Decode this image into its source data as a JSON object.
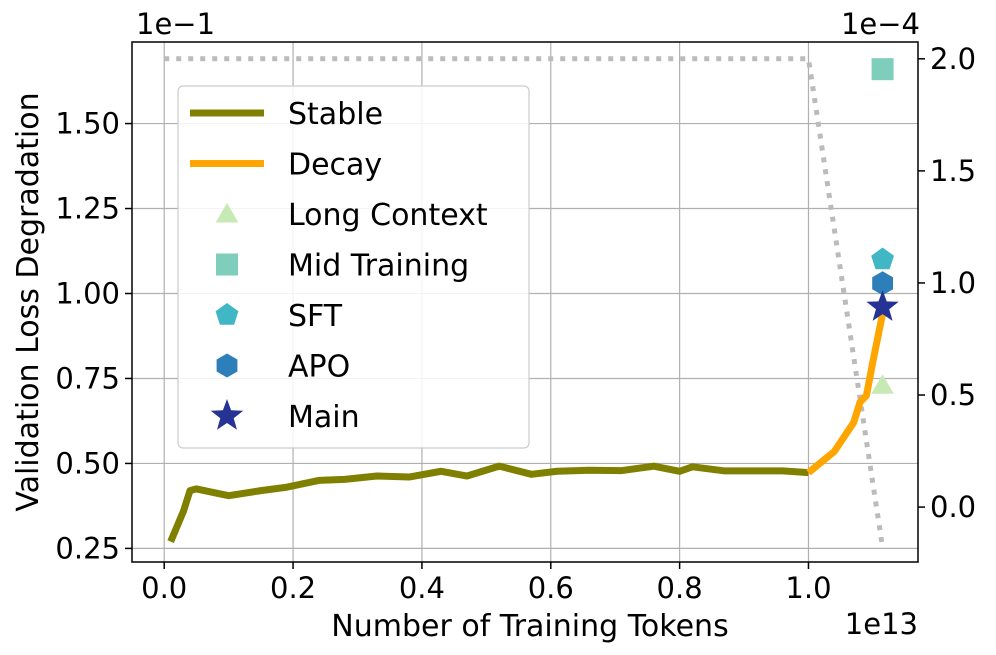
{
  "chart_data": {
    "type": "line",
    "title": "",
    "xlabel": "Number of Training Tokens",
    "ylabel": "Validation Loss Degradation",
    "x_exponent_label": "1e13",
    "y_exponent_label": "1e−1",
    "y2_exponent_label": "1e−4",
    "xlim": [
      -0.05,
      1.17
    ],
    "ylim": [
      0.21,
      1.74
    ],
    "y2lim": [
      -0.245,
      2.075
    ],
    "x_ticks": [
      0.0,
      0.2,
      0.4,
      0.6,
      0.8,
      1.0
    ],
    "x_tick_labels": [
      "0.0",
      "0.2",
      "0.4",
      "0.6",
      "0.8",
      "1.0"
    ],
    "y_ticks": [
      0.25,
      0.5,
      0.75,
      1.0,
      1.25,
      1.5
    ],
    "y_tick_labels": [
      "0.25",
      "0.50",
      "0.75",
      "1.00",
      "1.25",
      "1.50"
    ],
    "y2_ticks": [
      0.0,
      0.5,
      1.0,
      1.5,
      2.0
    ],
    "y2_tick_labels": [
      "0.0",
      "0.5",
      "1.0",
      "1.5",
      "2.0"
    ],
    "grid": true,
    "legend_position": "upper-left",
    "series": [
      {
        "name": "Stable",
        "kind": "line",
        "color": "#808000",
        "x": [
          0.01,
          0.03,
          0.04,
          0.05,
          0.1,
          0.15,
          0.19,
          0.24,
          0.28,
          0.33,
          0.38,
          0.43,
          0.47,
          0.52,
          0.57,
          0.61,
          0.66,
          0.71,
          0.76,
          0.8,
          0.82,
          0.87,
          0.92,
          0.96,
          1.0
        ],
        "y": [
          0.27,
          0.36,
          0.42,
          0.425,
          0.405,
          0.42,
          0.43,
          0.45,
          0.453,
          0.463,
          0.46,
          0.477,
          0.463,
          0.492,
          0.468,
          0.477,
          0.48,
          0.479,
          0.492,
          0.477,
          0.49,
          0.478,
          0.478,
          0.478,
          0.473
        ]
      },
      {
        "name": "Decay",
        "kind": "line",
        "color": "#ffa500",
        "x": [
          1.0,
          1.04,
          1.07,
          1.08,
          1.09,
          1.1,
          1.115
        ],
        "y": [
          0.473,
          0.535,
          0.62,
          0.68,
          0.7,
          0.8,
          0.94
        ]
      },
      {
        "name": "Long Context",
        "kind": "marker",
        "marker": "triangle",
        "color": "#c7e9b4",
        "x": [
          1.115
        ],
        "y": [
          0.73
        ]
      },
      {
        "name": "Mid Training",
        "kind": "marker",
        "marker": "square",
        "color": "#7fcdbb",
        "x": [
          1.115
        ],
        "y": [
          1.66
        ]
      },
      {
        "name": "SFT",
        "kind": "marker",
        "marker": "pentagon",
        "color": "#41b6c4",
        "x": [
          1.115
        ],
        "y": [
          1.1
        ]
      },
      {
        "name": "APO",
        "kind": "marker",
        "marker": "hexagon",
        "color": "#2c7fb8",
        "x": [
          1.115
        ],
        "y": [
          1.03
        ]
      },
      {
        "name": "Main",
        "kind": "marker",
        "marker": "star",
        "color": "#253494",
        "x": [
          1.115
        ],
        "y": [
          0.96
        ]
      }
    ],
    "secondary_series": {
      "axis": "right",
      "style": "dotted",
      "color": "#bbbbbb",
      "x": [
        0.0,
        1.0,
        1.115
      ],
      "y": [
        2.0,
        2.0,
        -0.18
      ]
    }
  }
}
